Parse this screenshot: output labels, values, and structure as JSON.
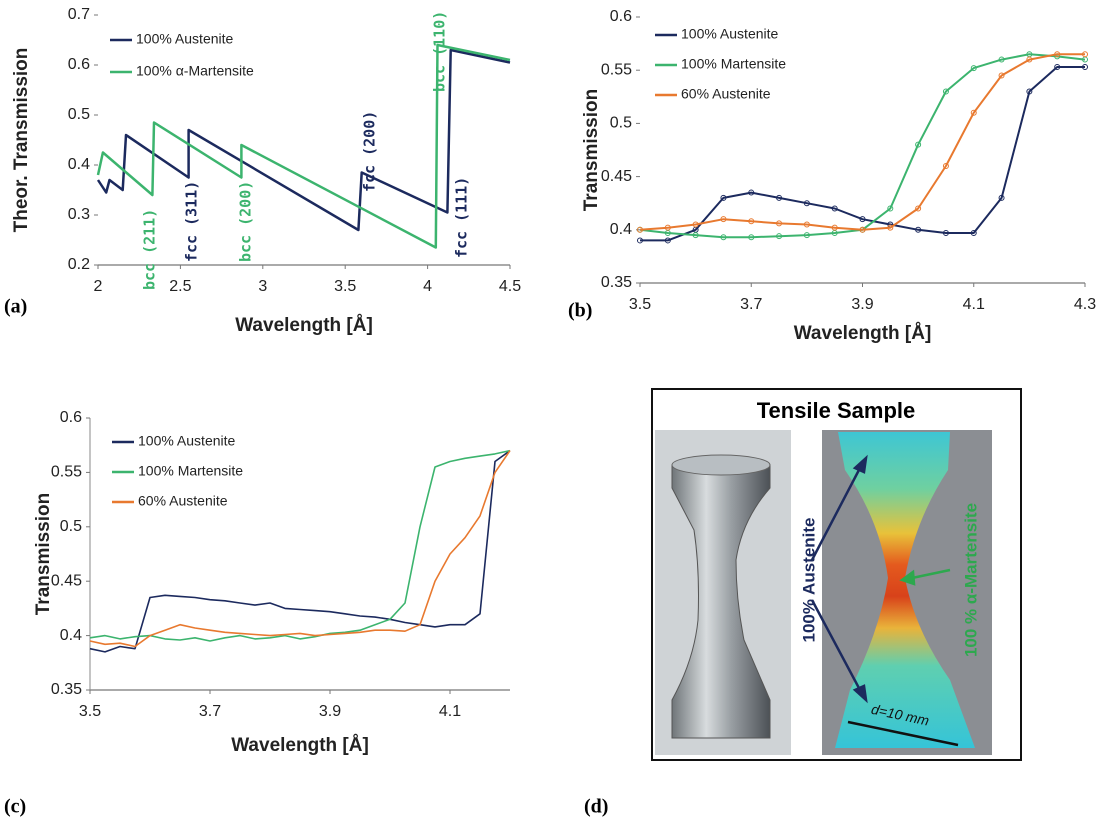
{
  "chart_data": [
    {
      "type": "line",
      "ylabel": "Theor. Transmission",
      "xlabel": "Wavelength [Å]",
      "xlim": [
        2,
        4.5
      ],
      "xticks": [
        2,
        2.5,
        3,
        3.5,
        4,
        4.5
      ],
      "ylim": [
        0.2,
        0.7
      ],
      "yticks": [
        0.2,
        0.3,
        0.4,
        0.5,
        0.6,
        0.7
      ],
      "series": [
        {
          "name": "100% Austenite",
          "color": "#1c2a5e",
          "x": [
            2.0,
            2.05,
            2.07,
            2.15,
            2.17,
            2.55,
            2.55,
            3.58,
            3.6,
            4.12,
            4.14,
            4.5
          ],
          "values": [
            0.37,
            0.345,
            0.37,
            0.35,
            0.46,
            0.375,
            0.47,
            0.27,
            0.385,
            0.305,
            0.63,
            0.605
          ]
        },
        {
          "name": "100% α-Martensite",
          "color": "#3cb46e",
          "x": [
            2.0,
            2.03,
            2.33,
            2.34,
            2.87,
            2.87,
            4.05,
            4.06,
            4.5
          ],
          "values": [
            0.38,
            0.425,
            0.34,
            0.485,
            0.375,
            0.44,
            0.235,
            0.64,
            0.61
          ]
        }
      ],
      "annotations": [
        {
          "text": "bcc (211)",
          "color": "#3cb46e"
        },
        {
          "text": "fcc (311)",
          "color": "#1c2a5e"
        },
        {
          "text": "bcc (200)",
          "color": "#3cb46e"
        },
        {
          "text": "fcc (200)",
          "color": "#1c2a5e"
        },
        {
          "text": "bcc (110)",
          "color": "#3cb46e"
        },
        {
          "text": "fcc (111)",
          "color": "#1c2a5e"
        }
      ]
    },
    {
      "type": "line",
      "markers": true,
      "ylabel": "Transmission",
      "xlabel": "Wavelength [Å]",
      "xlim": [
        3.5,
        4.3
      ],
      "xticks": [
        3.5,
        3.7,
        3.9,
        4.1,
        4.3
      ],
      "ylim": [
        0.35,
        0.6
      ],
      "yticks": [
        0.35,
        0.4,
        0.45,
        0.5,
        0.55,
        0.6
      ],
      "x": [
        3.5,
        3.55,
        3.6,
        3.65,
        3.7,
        3.75,
        3.8,
        3.85,
        3.9,
        3.95,
        4.0,
        4.05,
        4.1,
        4.15,
        4.2,
        4.25,
        4.3
      ],
      "series": [
        {
          "name": "100% Austenite",
          "color": "#1c2a5e",
          "values": [
            0.39,
            0.39,
            0.4,
            0.43,
            0.435,
            0.43,
            0.425,
            0.42,
            0.41,
            0.405,
            0.4,
            0.397,
            0.397,
            0.43,
            0.53,
            0.553,
            0.553
          ]
        },
        {
          "name": "100% Martensite",
          "color": "#3cb46e",
          "values": [
            0.4,
            0.397,
            0.395,
            0.393,
            0.393,
            0.394,
            0.395,
            0.397,
            0.4,
            0.42,
            0.48,
            0.53,
            0.552,
            0.56,
            0.565,
            0.563,
            0.56
          ]
        },
        {
          "name": "60% Austenite",
          "color": "#e8792f",
          "values": [
            0.4,
            0.402,
            0.405,
            0.41,
            0.408,
            0.406,
            0.405,
            0.402,
            0.4,
            0.402,
            0.42,
            0.46,
            0.51,
            0.545,
            0.56,
            0.565,
            0.565
          ]
        }
      ]
    },
    {
      "type": "line",
      "ylabel": "Transmission",
      "xlabel": "Wavelength [Å]",
      "xlim": [
        3.5,
        4.2
      ],
      "xticks": [
        3.5,
        3.7,
        3.9,
        4.1
      ],
      "ylim": [
        0.35,
        0.6
      ],
      "yticks": [
        0.35,
        0.4,
        0.45,
        0.5,
        0.55,
        0.6
      ],
      "x": [
        3.5,
        3.525,
        3.55,
        3.575,
        3.6,
        3.625,
        3.65,
        3.675,
        3.7,
        3.725,
        3.75,
        3.775,
        3.8,
        3.825,
        3.85,
        3.875,
        3.9,
        3.925,
        3.95,
        3.975,
        4.0,
        4.025,
        4.05,
        4.075,
        4.1,
        4.125,
        4.15,
        4.175,
        4.2
      ],
      "series": [
        {
          "name": "100% Austenite",
          "color": "#1c2a5e",
          "values": [
            0.388,
            0.385,
            0.39,
            0.388,
            0.435,
            0.437,
            0.436,
            0.435,
            0.433,
            0.432,
            0.43,
            0.428,
            0.43,
            0.425,
            0.424,
            0.423,
            0.422,
            0.42,
            0.418,
            0.417,
            0.415,
            0.412,
            0.41,
            0.408,
            0.41,
            0.41,
            0.42,
            0.56,
            0.57
          ]
        },
        {
          "name": "100% Martensite",
          "color": "#3cb46e",
          "values": [
            0.398,
            0.4,
            0.397,
            0.399,
            0.4,
            0.397,
            0.396,
            0.398,
            0.395,
            0.398,
            0.4,
            0.397,
            0.398,
            0.4,
            0.397,
            0.399,
            0.402,
            0.403,
            0.405,
            0.41,
            0.415,
            0.43,
            0.5,
            0.555,
            0.56,
            0.563,
            0.565,
            0.567,
            0.57
          ]
        },
        {
          "name": "60% Austenite",
          "color": "#e8792f",
          "values": [
            0.395,
            0.392,
            0.393,
            0.39,
            0.4,
            0.405,
            0.41,
            0.407,
            0.405,
            0.403,
            0.402,
            0.401,
            0.4,
            0.401,
            0.402,
            0.4,
            0.401,
            0.402,
            0.403,
            0.405,
            0.405,
            0.404,
            0.41,
            0.45,
            0.475,
            0.49,
            0.51,
            0.55,
            0.57
          ]
        }
      ]
    }
  ],
  "panels": {
    "labels": [
      "(a)",
      "(b)",
      "(c)",
      "(d)"
    ],
    "sample": {
      "title": "Tensile Sample",
      "austenite": "100% Austenite",
      "martensite": "100 % α-Martensite",
      "dimension": "d=10 mm"
    }
  }
}
